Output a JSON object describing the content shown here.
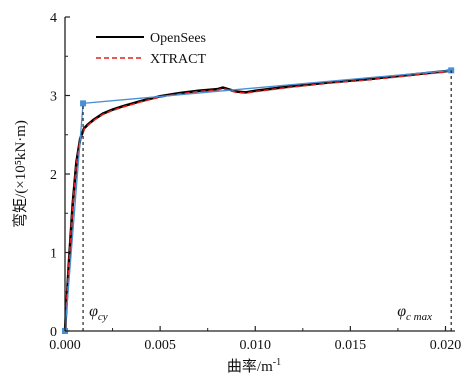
{
  "chart_data": {
    "type": "line",
    "xlabel": "曲率/m",
    "xlabel_sup": "-1",
    "ylabel": "弯矩/(×10⁵kN·m)",
    "xlim": [
      0,
      0.0205
    ],
    "ylim": [
      0,
      4
    ],
    "xticks": [
      0,
      0.005,
      0.01,
      0.015,
      0.02
    ],
    "xtick_labels": [
      "0.000",
      "0.005",
      "0.010",
      "0.015",
      "0.020"
    ],
    "yticks": [
      0,
      1,
      2,
      3,
      4
    ],
    "ytick_labels": [
      "0",
      "1",
      "2",
      "3",
      "4"
    ],
    "legend_position": "top-left",
    "series": [
      {
        "name": "OpenSees",
        "color": "#000000",
        "style": "solid",
        "x": [
          0,
          0.0002,
          0.0004,
          0.0006,
          0.0008,
          0.001,
          0.0012,
          0.0015,
          0.002,
          0.0025,
          0.003,
          0.004,
          0.005,
          0.006,
          0.007,
          0.008,
          0.0083,
          0.009,
          0.0095,
          0.01,
          0.012,
          0.014,
          0.016,
          0.018,
          0.02,
          0.0203
        ],
        "y": [
          0,
          0.85,
          1.6,
          2.15,
          2.45,
          2.58,
          2.63,
          2.69,
          2.77,
          2.82,
          2.86,
          2.93,
          2.99,
          3.03,
          3.06,
          3.08,
          3.1,
          3.05,
          3.04,
          3.06,
          3.12,
          3.17,
          3.21,
          3.26,
          3.31,
          3.32
        ]
      },
      {
        "name": "XTRACT",
        "color": "#e0201b",
        "style": "dashed",
        "x": [
          0,
          0.0002,
          0.0004,
          0.0006,
          0.0008,
          0.001,
          0.0012,
          0.0015,
          0.002,
          0.0025,
          0.003,
          0.004,
          0.005,
          0.006,
          0.007,
          0.008,
          0.0083,
          0.009,
          0.0095,
          0.01,
          0.012,
          0.014,
          0.016,
          0.018,
          0.02,
          0.0203
        ],
        "y": [
          0,
          0.83,
          1.58,
          2.13,
          2.44,
          2.57,
          2.62,
          2.68,
          2.76,
          2.81,
          2.85,
          2.92,
          2.98,
          3.02,
          3.05,
          3.07,
          3.09,
          3.04,
          3.03,
          3.05,
          3.11,
          3.16,
          3.2,
          3.25,
          3.3,
          3.31
        ]
      },
      {
        "name": "",
        "color": "#4a8fd4",
        "style": "solid-markers",
        "x": [
          0,
          0.00095,
          0.0203
        ],
        "y": [
          0,
          2.9,
          3.32
        ]
      }
    ],
    "reference_lines": [
      {
        "x": 0.00095,
        "label": "φ",
        "sub": "cy"
      },
      {
        "x": 0.0203,
        "label": "φ",
        "sub": "c max"
      }
    ]
  }
}
